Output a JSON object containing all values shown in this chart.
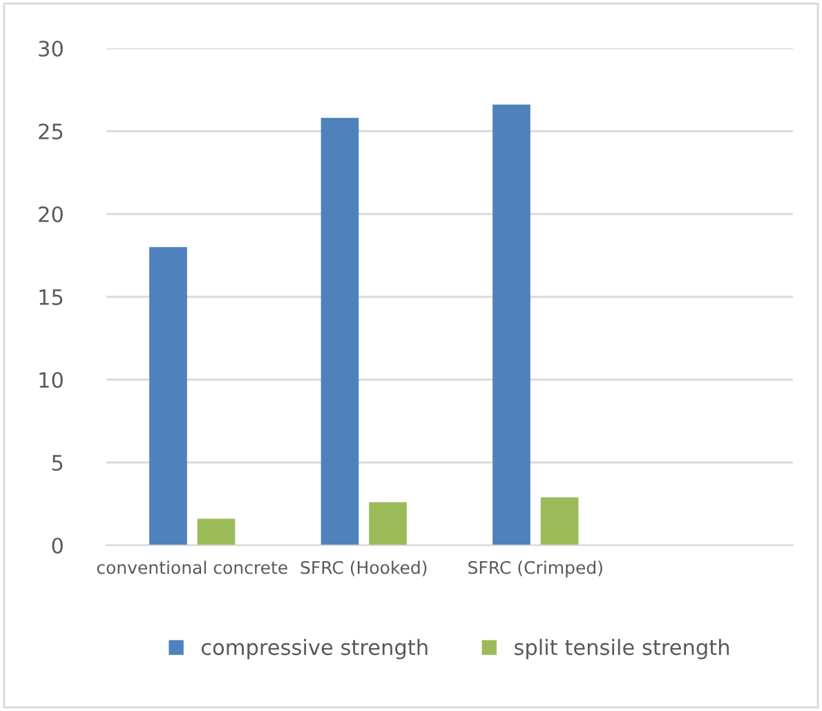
{
  "chart_data": {
    "type": "bar",
    "categories": [
      "conventional concrete",
      "SFRC (Hooked)",
      "SFRC (Crimped)",
      null
    ],
    "series": [
      {
        "name": "compressive strength",
        "color": "#4f81bd",
        "values": [
          18,
          25.8,
          26.6,
          null
        ]
      },
      {
        "name": "split tensile strength",
        "color": "#9bbb59",
        "values": [
          1.6,
          2.6,
          2.9,
          null
        ]
      }
    ],
    "ylim": [
      0,
      30
    ],
    "yticks": [
      0,
      5,
      10,
      15,
      20,
      25,
      30
    ],
    "grid": "y",
    "legend": "bottom"
  }
}
